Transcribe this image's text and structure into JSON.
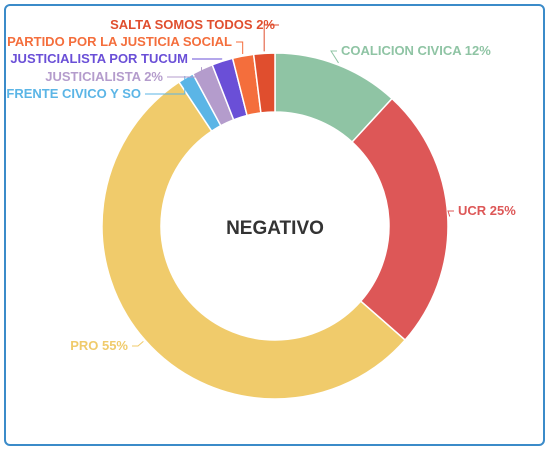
{
  "chart_data": {
    "type": "pie",
    "center_label": "NEGATIVO",
    "slices": [
      {
        "label": "COALICION CIVICA 12%",
        "value": 12,
        "color": "#8fc4a4"
      },
      {
        "label": "UCR 25%",
        "value": 25,
        "color": "#dd5757"
      },
      {
        "label": "PRO 55%",
        "value": 55,
        "color": "#f0cb6b"
      },
      {
        "label": "FRENTE CIVICO Y SO",
        "value": 1.5,
        "color": "#5bb5e6"
      },
      {
        "label": "JUSTICIALISTA 2%",
        "value": 2,
        "color": "#b49ccc"
      },
      {
        "label": "JUSTICIALISTA POR TUCUM",
        "value": 2,
        "color": "#6a4fd7"
      },
      {
        "label": "PARTIDO POR LA JUSTICIA SOCIAL",
        "value": 2,
        "color": "#f46e3c"
      },
      {
        "label": "SALTA SOMOS TODOS 2%",
        "value": 2,
        "color": "#e04e2e"
      }
    ]
  }
}
